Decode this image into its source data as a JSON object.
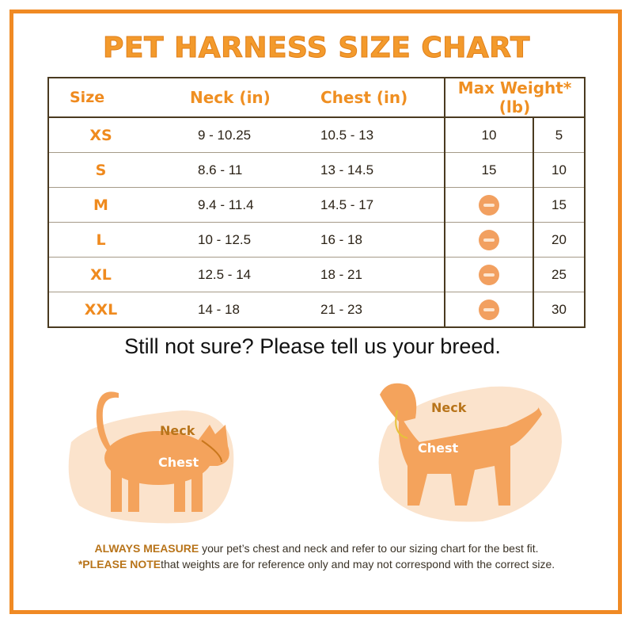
{
  "title": "PET HARNESS SIZE CHART",
  "table": {
    "headers": [
      "Size",
      "Neck (in)",
      "Chest (in)",
      "Max Weight* (lb)"
    ],
    "rows": [
      {
        "size": "XS",
        "neck": "9 - 10.25",
        "chest": "10.5 - 13",
        "w1": "10",
        "w2": "5"
      },
      {
        "size": "S",
        "neck": "8.6 - 11",
        "chest": "13 - 14.5",
        "w1": "15",
        "w2": "10"
      },
      {
        "size": "M",
        "neck": "9.4 - 11.4",
        "chest": "14.5 - 17",
        "w1": null,
        "w2": "15"
      },
      {
        "size": "L",
        "neck": "10 - 12.5",
        "chest": "16 - 18",
        "w1": null,
        "w2": "20"
      },
      {
        "size": "XL",
        "neck": "12.5 - 14",
        "chest": "18 - 21",
        "w1": null,
        "w2": "25"
      },
      {
        "size": "XXL",
        "neck": "14 - 18",
        "chest": "21 - 23",
        "w1": null,
        "w2": "30"
      }
    ]
  },
  "subtitle": "Still not sure? Please tell us your breed.",
  "cat": {
    "neck_label": "Neck",
    "chest_label": "Chest"
  },
  "dog": {
    "neck_label": "Neck",
    "chest_label": "Chest"
  },
  "footer": {
    "line1_bold": "ALWAYS MEASURE",
    "line1_rest": " your pet’s chest and neck and refer to our sizing chart for the best fit.",
    "line2_bold": "*PLEASE NOTE",
    "line2_rest": "that weights are for reference only and may not correspond with the correct size."
  },
  "colors": {
    "accent": "#f08a24",
    "silhouette": "#f4a35c",
    "blob": "#fbe3cc"
  }
}
